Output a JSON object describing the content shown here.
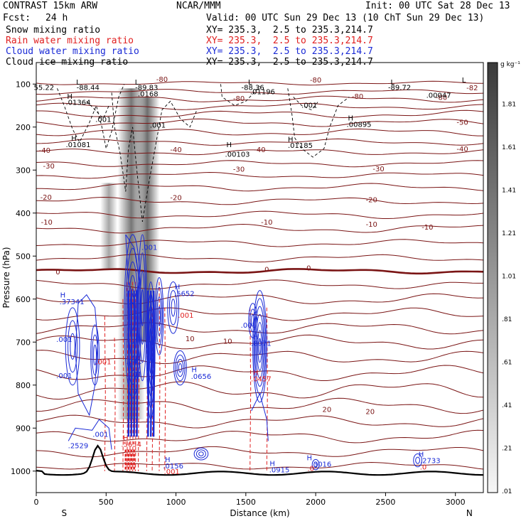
{
  "header": {
    "title": "CONTRAST 15km ARW",
    "center": "NCAR/MMM",
    "init": "Init: 00 UTC Sat 28 Dec 13",
    "fcst_label": "Fcst:",
    "fcst_value": "24 h",
    "valid": "Valid: 00 UTC Sun 29 Dec 13 (10 ChT Sun 29 Dec 13)"
  },
  "fields": [
    {
      "name": "Snow mixing ratio",
      "xy": "XY= 235.3,  2.5 to 235.3,214.7",
      "color": "#000000"
    },
    {
      "name": "Rain water mixing ratio",
      "xy": "XY= 235.3,  2.5 to 235.3,214.7",
      "color": "#e02020"
    },
    {
      "name": "Cloud water mixing ratio",
      "xy": "XY= 235.3,  2.5 to 235.3,214.7",
      "color": "#1a2ad6"
    },
    {
      "name": "Cloud ice mixing ratio",
      "xy": "XY= 235.3,  2.5 to 235.3,214.7",
      "color": "#000000"
    }
  ],
  "chart_data": {
    "type": "cross-section contour",
    "xlabel": "Distance (km)",
    "ylabel": "Pressure (hPa)",
    "xlim": [
      0,
      3200
    ],
    "ylim": [
      1050,
      50
    ],
    "x_ticks": [
      0,
      500,
      1000,
      1500,
      2000,
      2500,
      3000
    ],
    "y_ticks": [
      100,
      200,
      300,
      400,
      500,
      600,
      700,
      800,
      900,
      1000
    ],
    "x_end_labels": {
      "left": "S",
      "right": "N"
    },
    "colorbar": {
      "unit": "g kg⁻¹",
      "labels": [
        "1.81",
        "1.61",
        "1.41",
        "1.21",
        "1.01",
        ".81",
        ".61",
        ".41",
        ".21",
        ".01"
      ],
      "values": [
        1.81,
        1.61,
        1.41,
        1.21,
        1.01,
        0.81,
        0.61,
        0.41,
        0.21,
        0.01
      ]
    },
    "temperature_contours": {
      "color": "#7a1414",
      "zero_line_pressure": 535,
      "labels": [
        {
          "t": "-82",
          "x": 3120,
          "p": 108
        },
        {
          "t": "-80",
          "x": 900,
          "p": 88
        },
        {
          "t": "-80",
          "x": 2000,
          "p": 90
        },
        {
          "t": "-80",
          "x": 1450,
          "p": 133
        },
        {
          "t": "-80",
          "x": 2300,
          "p": 128
        },
        {
          "t": "-80",
          "x": 2900,
          "p": 130
        },
        {
          "t": "-50",
          "x": 3050,
          "p": 188
        },
        {
          "t": "-40",
          "x": 60,
          "p": 253
        },
        {
          "t": "-40",
          "x": 1000,
          "p": 252
        },
        {
          "t": "-40",
          "x": 1600,
          "p": 252
        },
        {
          "t": "-40",
          "x": 3050,
          "p": 250
        },
        {
          "t": "-30",
          "x": 90,
          "p": 290
        },
        {
          "t": "-30",
          "x": 1450,
          "p": 297
        },
        {
          "t": "-30",
          "x": 2450,
          "p": 296
        },
        {
          "t": "-20",
          "x": 70,
          "p": 362
        },
        {
          "t": "-20",
          "x": 1000,
          "p": 363
        },
        {
          "t": "-20",
          "x": 2400,
          "p": 368
        },
        {
          "t": "-10",
          "x": 75,
          "p": 420
        },
        {
          "t": "-10",
          "x": 1650,
          "p": 420
        },
        {
          "t": "-10",
          "x": 2400,
          "p": 425
        },
        {
          "t": "-10",
          "x": 2800,
          "p": 432
        },
        {
          "t": "0",
          "x": 155,
          "p": 536
        },
        {
          "t": "0",
          "x": 1650,
          "p": 530
        },
        {
          "t": "0",
          "x": 1950,
          "p": 527
        },
        {
          "t": "10",
          "x": 1100,
          "p": 691
        },
        {
          "t": "10",
          "x": 1370,
          "p": 697
        },
        {
          "t": "20",
          "x": 2080,
          "p": 856
        },
        {
          "t": "20",
          "x": 2390,
          "p": 861
        }
      ]
    },
    "snow_labels": [
      {
        "t": "L",
        "x": 300,
        "p": 95
      },
      {
        "t": "-88.44",
        "x": 370,
        "p": 107
      },
      {
        "t": "55.22",
        "x": 55,
        "p": 107
      },
      {
        "t": "L",
        "x": 720,
        "p": 95
      },
      {
        "t": "-89.83",
        "x": 790,
        "p": 107
      },
      {
        "t": "L",
        "x": 1530,
        "p": 95
      },
      {
        "t": "-88.36",
        "x": 1550,
        "p": 107
      },
      {
        "t": "L",
        "x": 2550,
        "p": 95
      },
      {
        "t": "-89.72",
        "x": 2600,
        "p": 107
      },
      {
        "t": "L",
        "x": 3060,
        "p": 90
      },
      {
        "t": "H",
        "x": 240,
        "p": 128
      },
      {
        "t": ".01364",
        "x": 300,
        "p": 142
      },
      {
        "t": ".0168",
        "x": 800,
        "p": 122
      },
      {
        "t": ".01196",
        "x": 1620,
        "p": 117
      },
      {
        "t": ".00047",
        "x": 2880,
        "p": 125
      },
      {
        "t": ".001",
        "x": 480,
        "p": 181
      },
      {
        "t": ".001",
        "x": 870,
        "p": 195
      },
      {
        "t": ".001",
        "x": 1955,
        "p": 148
      },
      {
        "t": "H",
        "x": 2250,
        "p": 178
      },
      {
        "t": ".00895",
        "x": 2310,
        "p": 193
      },
      {
        "t": "H",
        "x": 270,
        "p": 225
      },
      {
        "t": ".01081",
        "x": 300,
        "p": 240
      },
      {
        "t": "H",
        "x": 1380,
        "p": 240
      },
      {
        "t": ".00103",
        "x": 1440,
        "p": 262
      },
      {
        "t": "H",
        "x": 1820,
        "p": 228
      },
      {
        "t": ".01185",
        "x": 1890,
        "p": 242
      }
    ],
    "cloudwater_labels": [
      {
        "t": ".001",
        "x": 810,
        "p": 479
      },
      {
        "t": "H",
        "x": 190,
        "p": 590
      },
      {
        "t": ".37341",
        "x": 255,
        "p": 605
      },
      {
        "t": "H",
        "x": 1010,
        "p": 571
      },
      {
        "t": ".5652",
        "x": 1060,
        "p": 586
      },
      {
        "t": ".001",
        "x": 1520,
        "p": 660
      },
      {
        "t": "H",
        "x": 1570,
        "p": 686
      },
      {
        "t": ".8071",
        "x": 1610,
        "p": 702
      },
      {
        "t": ".001",
        "x": 200,
        "p": 693
      },
      {
        "t": ".001",
        "x": 200,
        "p": 777
      },
      {
        "t": "H",
        "x": 1130,
        "p": 763
      },
      {
        "t": ".0656",
        "x": 1180,
        "p": 779
      },
      {
        "t": ".001",
        "x": 460,
        "p": 914
      },
      {
        "t": ".2529",
        "x": 300,
        "p": 940
      },
      {
        "t": "H",
        "x": 940,
        "p": 972
      },
      {
        "t": ".0156",
        "x": 980,
        "p": 987
      },
      {
        "t": "H",
        "x": 1690,
        "p": 981
      },
      {
        "t": ".0915",
        "x": 1740,
        "p": 996
      },
      {
        "t": "H",
        "x": 1955,
        "p": 968
      },
      {
        "t": ".3016",
        "x": 2040,
        "p": 983
      },
      {
        "t": "H",
        "x": 2755,
        "p": 960
      },
      {
        "t": ".2733",
        "x": 2820,
        "p": 975
      },
      {
        "t": ".001",
        "x": 700,
        "p": 744
      },
      {
        "t": ".001",
        "x": 700,
        "p": 774
      }
    ],
    "rain_labels": [
      {
        "t": ".001",
        "x": 1070,
        "p": 637
      },
      {
        "t": ".001",
        "x": 480,
        "p": 745
      },
      {
        "t": "H",
        "x": 1570,
        "p": 770
      },
      {
        "t": ".0457",
        "x": 1610,
        "p": 785
      },
      {
        "t": "H",
        "x": 640,
        "p": 922
      },
      {
        "t": ".5654",
        "x": 680,
        "p": 937
      },
      {
        "t": ".001",
        "x": 970,
        "p": 1000
      },
      {
        "t": ".0",
        "x": 1965,
        "p": 993
      },
      {
        "t": ".0",
        "x": 2770,
        "p": 990
      }
    ]
  }
}
